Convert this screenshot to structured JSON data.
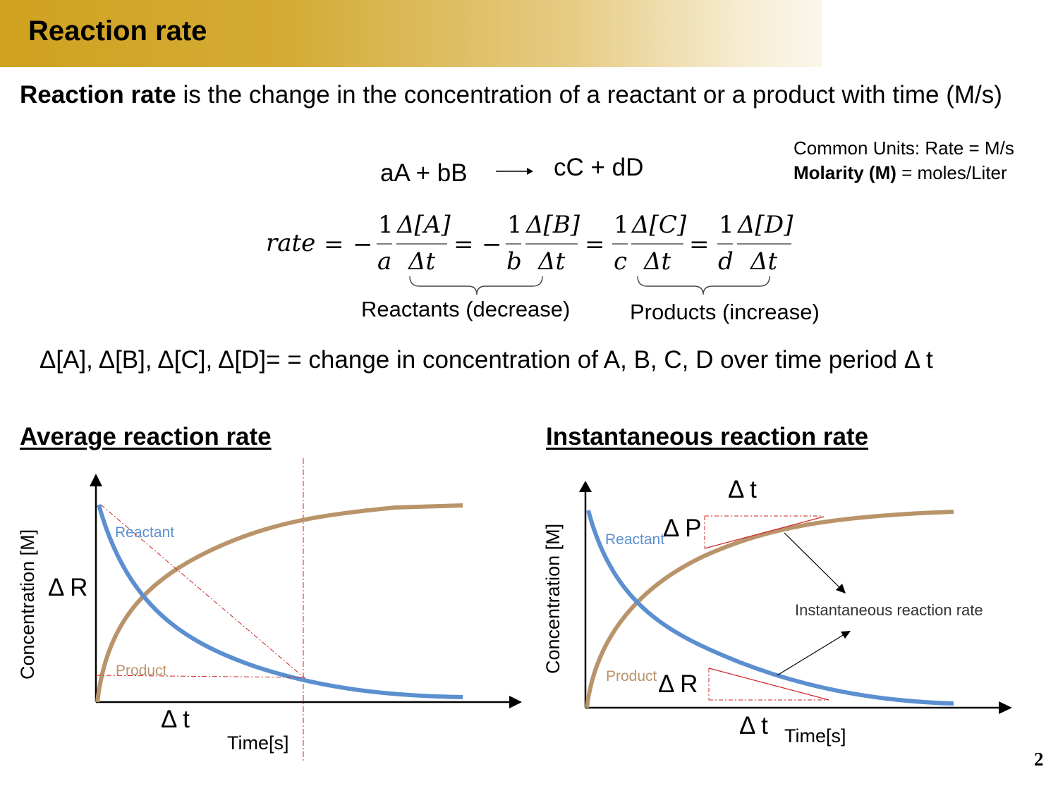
{
  "header": {
    "title": "Reaction rate"
  },
  "definition": {
    "term": "Reaction rate",
    "text": " is the change in the concentration of a reactant or a product with time (M/s)"
  },
  "units": {
    "line1": "Common Units: Rate = M/s",
    "line2_bold": "Molarity (M)",
    "line2_rest": " = moles/Liter"
  },
  "equation": {
    "left": "aA + bB",
    "right": "cC + dD"
  },
  "formula": {
    "rate": "rate",
    "one": "1",
    "coeffs": [
      "a",
      "b",
      "c",
      "d"
    ],
    "numerators": [
      "Δ[A]",
      "Δ[B]",
      "Δ[C]",
      "Δ[D]"
    ],
    "denominator": "Δt"
  },
  "brace_labels": {
    "reactants": "Reactants (decrease)",
    "products": "Products (increase)"
  },
  "delta_definition": "Δ[A], Δ[B], Δ[C], Δ[D]= = change in concentration of A, B, C, D over time period Δ t",
  "average_chart": {
    "heading": "Average reaction rate",
    "y_axis_label": "Concentration [M]",
    "x_axis_label": "Time[s]",
    "reactant_label": "Reactant",
    "product_label": "Product",
    "delta_r": "Δ R",
    "delta_t": "Δ t"
  },
  "instant_chart": {
    "heading": "Instantaneous reaction rate",
    "y_axis_label": "Concentration [M]",
    "x_axis_label": "Time[s]",
    "reactant_label": "Reactant",
    "product_label": "Product",
    "delta_p": "Δ P",
    "delta_r": "Δ R",
    "delta_t_top": "Δ t",
    "delta_t_bottom": "Δ t",
    "annotation": "Instantaneous reaction rate"
  },
  "colors": {
    "reactant": "#5b8fd0",
    "product": "#b9946a",
    "guide": "#cc2222",
    "banner": "#cfa21f"
  },
  "page_number": "2"
}
